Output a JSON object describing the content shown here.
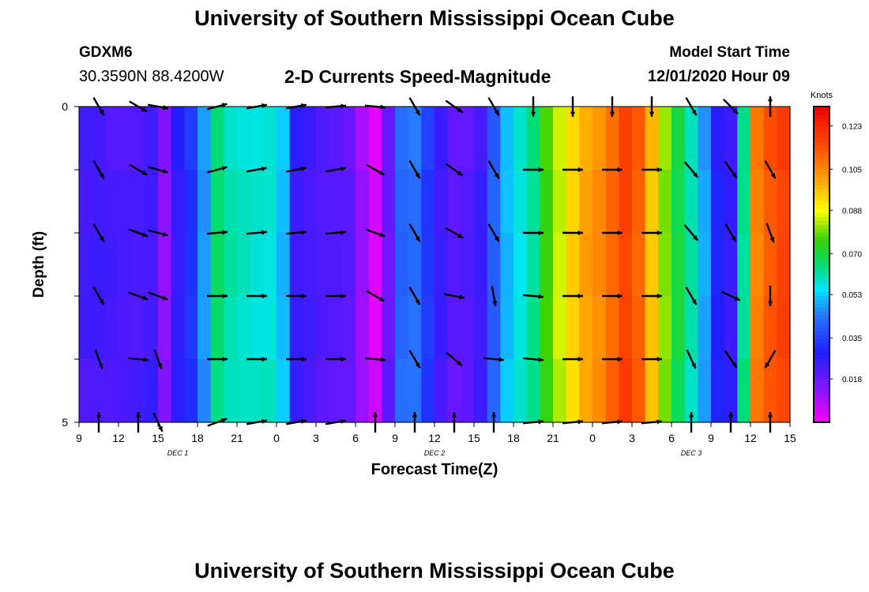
{
  "header": {
    "title": "University of Southern Mississippi Ocean Cube",
    "station": "GDXM6",
    "coords": "30.3590N 88.4200W",
    "product": "2-D Currents Speed-Magnitude",
    "start_label": "Model Start Time",
    "start_value": "12/01/2020 Hour 09",
    "footer_title": "University of Southern Mississippi Ocean Cube"
  },
  "chart_data": {
    "type": "heatmap",
    "title": "2-D Currents Speed-Magnitude",
    "xlabel": "Forecast Time(Z)",
    "ylabel": "Depth (ft)",
    "ylim": [
      0,
      5
    ],
    "y_ticks": [
      "0",
      "5"
    ],
    "x_ticks": [
      "9",
      "12",
      "15",
      "18",
      "21",
      "0",
      "3",
      "6",
      "9",
      "12",
      "15",
      "18",
      "21",
      "0",
      "3",
      "6",
      "9",
      "12",
      "15"
    ],
    "x_tick_hours": [
      0,
      3,
      6,
      9,
      12,
      15,
      18,
      21,
      24,
      27,
      30,
      33,
      36,
      39,
      42,
      45,
      48,
      51,
      54
    ],
    "x_range_hours": [
      0,
      54
    ],
    "date_labels": [
      {
        "text": "DEC 1",
        "hour": 7.5
      },
      {
        "text": "DEC 2",
        "hour": 27
      },
      {
        "text": "DEC 3",
        "hour": 46.5
      }
    ],
    "colorbar": {
      "units": "Knots",
      "min": 0.0,
      "max": 0.131,
      "ticks": [
        "0.123",
        "0.105",
        "0.088",
        "0.070",
        "0.053",
        "0.035",
        "0.018"
      ],
      "tick_values": [
        0.123,
        0.105,
        0.088,
        0.07,
        0.053,
        0.035,
        0.018
      ]
    },
    "time_profile": {
      "hours": [
        0,
        1,
        2,
        3,
        4,
        5,
        6,
        7,
        8,
        9,
        10,
        11,
        12,
        13,
        14,
        15,
        16,
        17,
        18,
        19,
        20,
        21,
        22,
        23,
        24,
        25,
        26,
        27,
        28,
        29,
        30,
        31,
        32,
        33,
        34,
        35,
        36,
        37,
        38,
        39,
        40,
        41,
        42,
        43,
        44,
        45,
        46,
        47,
        48,
        49,
        50,
        51,
        52,
        53,
        54
      ],
      "speed": [
        0.024,
        0.025,
        0.024,
        0.023,
        0.022,
        0.023,
        0.012,
        0.025,
        0.032,
        0.048,
        0.067,
        0.062,
        0.06,
        0.058,
        0.057,
        0.05,
        0.024,
        0.023,
        0.022,
        0.022,
        0.021,
        0.012,
        0.004,
        0.017,
        0.04,
        0.042,
        0.033,
        0.025,
        0.021,
        0.022,
        0.025,
        0.04,
        0.05,
        0.056,
        0.062,
        0.075,
        0.085,
        0.095,
        0.102,
        0.105,
        0.11,
        0.116,
        0.11,
        0.095,
        0.08,
        0.07,
        0.062,
        0.05,
        0.03,
        0.025,
        0.062,
        0.105,
        0.112,
        0.117,
        0.122
      ]
    },
    "arrow_rows_depth": [
      0,
      1,
      2,
      3,
      4,
      5
    ],
    "arrow_hours": [
      1.5,
      4.5,
      6,
      10.5,
      13.5,
      16.5,
      19.5,
      22.5,
      25.5,
      28.5,
      31.5,
      34.5,
      37.5,
      40.5,
      43.5,
      46.5,
      49.5,
      52.5
    ],
    "arrow_dirs_deg": [
      [
        150,
        120,
        100,
        75,
        80,
        80,
        85,
        95,
        150,
        125,
        150,
        180,
        180,
        180,
        180,
        150,
        135,
        0
      ],
      [
        150,
        120,
        105,
        75,
        80,
        80,
        80,
        120,
        150,
        125,
        150,
        90,
        90,
        90,
        90,
        140,
        145,
        150
      ],
      [
        150,
        110,
        105,
        85,
        85,
        85,
        85,
        110,
        150,
        120,
        150,
        90,
        90,
        90,
        90,
        140,
        150,
        160
      ],
      [
        150,
        110,
        110,
        90,
        90,
        90,
        90,
        120,
        150,
        100,
        170,
        95,
        90,
        90,
        90,
        150,
        115,
        180
      ],
      [
        160,
        95,
        160,
        90,
        90,
        90,
        90,
        95,
        150,
        130,
        95,
        95,
        90,
        90,
        90,
        155,
        145,
        210
      ],
      [
        0,
        0,
        155,
        70,
        80,
        80,
        80,
        0,
        0,
        0,
        0,
        85,
        85,
        85,
        85,
        0,
        0,
        0
      ]
    ]
  }
}
